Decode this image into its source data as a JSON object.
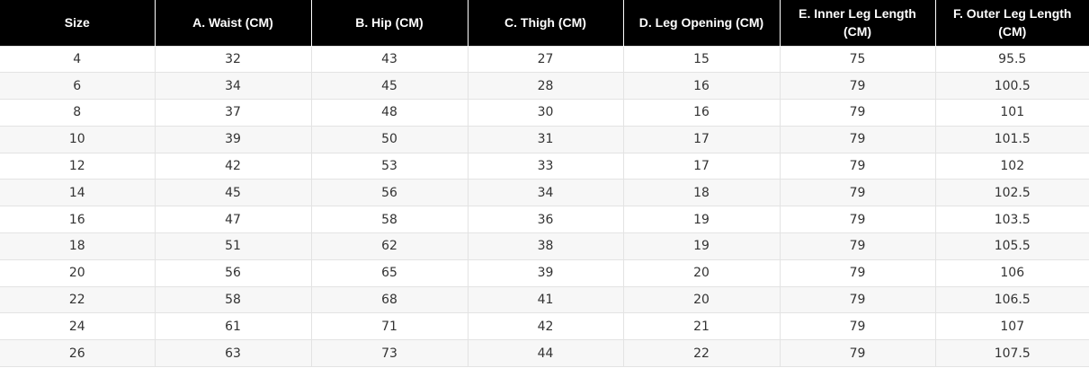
{
  "table": {
    "headers": [
      "Size",
      "A. Waist (CM)",
      "B. Hip (CM)",
      "C. Thigh (CM)",
      "D. Leg Opening (CM)",
      "E. Inner Leg Length (CM)",
      "F. Outer Leg Length (CM)"
    ],
    "rows": [
      [
        "4",
        "32",
        "43",
        "27",
        "15",
        "75",
        "95.5"
      ],
      [
        "6",
        "34",
        "45",
        "28",
        "16",
        "79",
        "100.5"
      ],
      [
        "8",
        "37",
        "48",
        "30",
        "16",
        "79",
        "101"
      ],
      [
        "10",
        "39",
        "50",
        "31",
        "17",
        "79",
        "101.5"
      ],
      [
        "12",
        "42",
        "53",
        "33",
        "17",
        "79",
        "102"
      ],
      [
        "14",
        "45",
        "56",
        "34",
        "18",
        "79",
        "102.5"
      ],
      [
        "16",
        "47",
        "58",
        "36",
        "19",
        "79",
        "103.5"
      ],
      [
        "18",
        "51",
        "62",
        "38",
        "19",
        "79",
        "105.5"
      ],
      [
        "20",
        "56",
        "65",
        "39",
        "20",
        "79",
        "106"
      ],
      [
        "22",
        "58",
        "68",
        "41",
        "20",
        "79",
        "106.5"
      ],
      [
        "24",
        "61",
        "71",
        "42",
        "21",
        "79",
        "107"
      ],
      [
        "26",
        "63",
        "73",
        "44",
        "22",
        "79",
        "107.5"
      ]
    ]
  },
  "colors": {
    "header_background": "#000000",
    "header_text": "#ffffff",
    "body_text": "#333333",
    "stripe_background": "#f7f7f7",
    "border": "#e3e3e3"
  }
}
